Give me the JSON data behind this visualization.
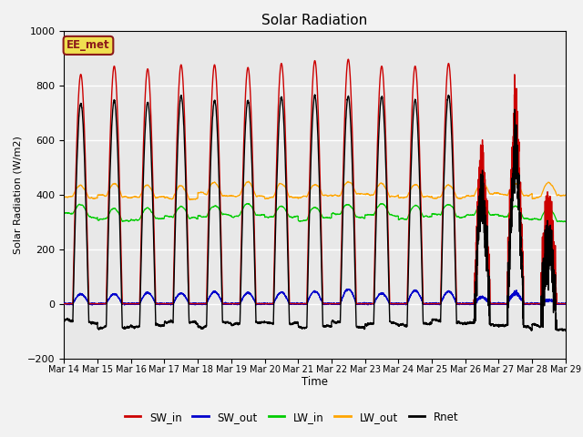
{
  "title": "Solar Radiation",
  "ylabel": "Solar Radiation (W/m2)",
  "xlabel": "Time",
  "ylim": [
    -200,
    1000
  ],
  "plot_bg": "#e8e8e8",
  "fig_bg": "#f2f2f2",
  "annotation_text": "EE_met",
  "annotation_box_color": "#f0e050",
  "annotation_border_color": "#8b1a1a",
  "SW_in_color": "#cc0000",
  "SW_out_color": "#0000cc",
  "LW_in_color": "#00cc00",
  "LW_out_color": "#ffa500",
  "Rnet_color": "#000000",
  "n_days": 15,
  "ppd": 288,
  "SW_peaks": [
    840,
    870,
    860,
    875,
    875,
    865,
    880,
    890,
    895,
    870,
    870,
    880,
    480,
    650,
    320
  ],
  "xtick_labels": [
    "Mar 14",
    "Mar 15",
    "Mar 16",
    "Mar 17",
    "Mar 18",
    "Mar 19",
    "Mar 20",
    "Mar 21",
    "Mar 22",
    "Mar 23",
    "Mar 24",
    "Mar 25",
    "Mar 26",
    "Mar 27",
    "Mar 28",
    "Mar 29"
  ]
}
